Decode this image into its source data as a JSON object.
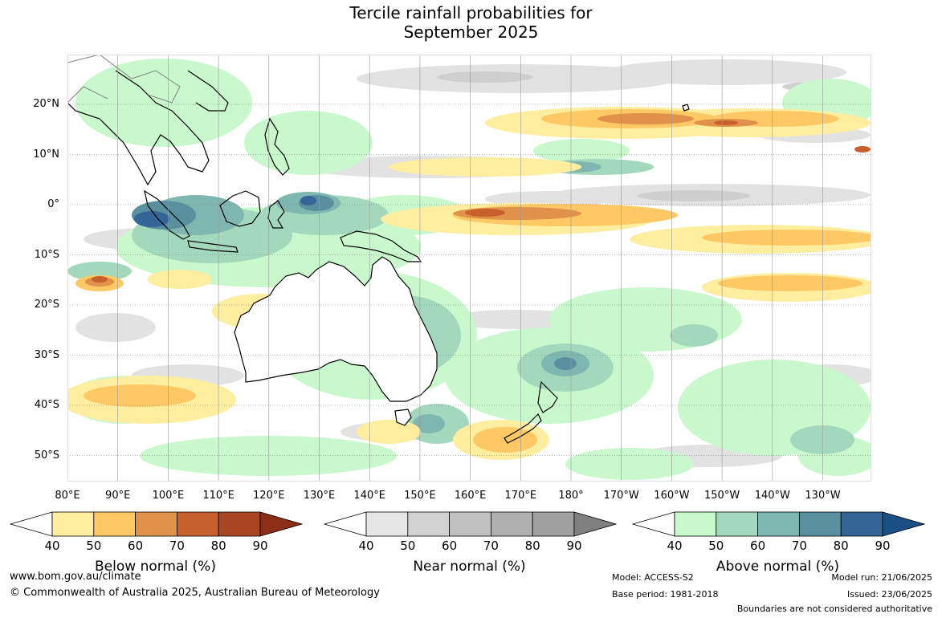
{
  "title": {
    "line1": "Tercile rainfall probabilities for",
    "line2": "September 2025"
  },
  "map": {
    "lat_labels": [
      "20°N",
      "10°N",
      "0°",
      "10°S",
      "20°S",
      "30°S",
      "40°S",
      "50°S"
    ],
    "lat_values": [
      20,
      10,
      0,
      -10,
      -20,
      -30,
      -40,
      -50
    ],
    "lon_labels": [
      "80°E",
      "90°E",
      "100°E",
      "110°E",
      "120°E",
      "130°E",
      "140°E",
      "150°E",
      "160°E",
      "170°E",
      "180°",
      "170°W",
      "160°W",
      "150°W",
      "140°W",
      "130°W"
    ],
    "lon_values": [
      80,
      90,
      100,
      110,
      120,
      130,
      140,
      150,
      160,
      170,
      180,
      190,
      200,
      210,
      220,
      230
    ]
  },
  "legends": [
    {
      "title": "Below normal (%)",
      "ticks": [
        "40",
        "50",
        "60",
        "70",
        "80",
        "90"
      ],
      "colors": [
        "#ffffff",
        "#ffeda0",
        "#fec965",
        "#e0914a",
        "#c8602e",
        "#a84624",
        "#8c2e17"
      ]
    },
    {
      "title": "Near normal (%)",
      "ticks": [
        "40",
        "50",
        "60",
        "70",
        "80",
        "90"
      ],
      "colors": [
        "#ffffff",
        "#e6e6e6",
        "#d2d2d2",
        "#c0c0c0",
        "#b0b0b0",
        "#a0a0a0",
        "#808080"
      ]
    },
    {
      "title": "Above normal (%)",
      "ticks": [
        "40",
        "50",
        "60",
        "70",
        "80",
        "90"
      ],
      "colors": [
        "#ffffff",
        "#c9f8cc",
        "#a3d8bd",
        "#80b6b0",
        "#5a8fa0",
        "#356597",
        "#1b4e82"
      ]
    }
  ],
  "footer": {
    "website": "www.bom.gov.au/climate",
    "copyright": "© Commonwealth of Australia 2025, Australian Bureau of Meteorology",
    "model": "Model: ACCESS-S2",
    "base_period": "Base period: 1981-2018",
    "model_run": "Model run: 21/06/2025",
    "issued": "Issued: 23/06/2025",
    "disclaimer": "Boundaries are not considered authoritative"
  }
}
